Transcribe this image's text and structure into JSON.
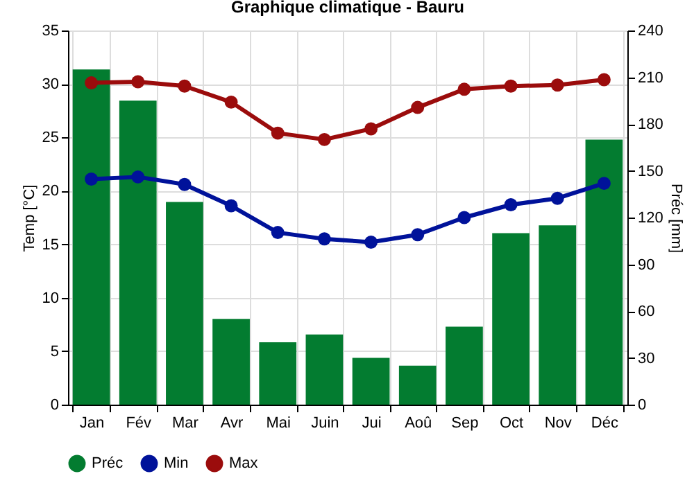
{
  "chart_data": {
    "type": "bar",
    "title": "Graphique climatique - Bauru",
    "ylabel": "Temp [°C]",
    "y2label": "Préc [mm]",
    "categories": [
      "Jan",
      "Fév",
      "Mar",
      "Avr",
      "Mai",
      "Juin",
      "Jui",
      "Aoû",
      "Sep",
      "Oct",
      "Nov",
      "Déc"
    ],
    "series": [
      {
        "name": "Préc",
        "axis": "y2",
        "color": "#037c30",
        "values": [
          215,
          195,
          130,
          55,
          40,
          45,
          30,
          25,
          50,
          110,
          115,
          170
        ]
      },
      {
        "name": "Min",
        "type": "line",
        "color": "#00129a",
        "values": [
          21.1,
          21.3,
          20.6,
          18.6,
          16.1,
          15.5,
          15.2,
          15.9,
          17.5,
          18.7,
          19.3,
          20.7
        ]
      },
      {
        "name": "Max",
        "type": "line",
        "color": "#9b0c0c",
        "values": [
          30.1,
          30.2,
          29.8,
          28.3,
          25.4,
          24.8,
          25.8,
          27.8,
          29.5,
          29.8,
          29.9,
          30.4
        ]
      }
    ],
    "ylim": [
      0,
      35
    ],
    "yticks": [
      0,
      5,
      10,
      15,
      20,
      25,
      30,
      35
    ],
    "y2lim": [
      0,
      240
    ],
    "y2ticks": [
      0,
      30,
      60,
      90,
      120,
      150,
      180,
      210,
      240
    ],
    "grid": true,
    "legend": "bottom left",
    "marker": "circle",
    "line_style": "solid"
  }
}
